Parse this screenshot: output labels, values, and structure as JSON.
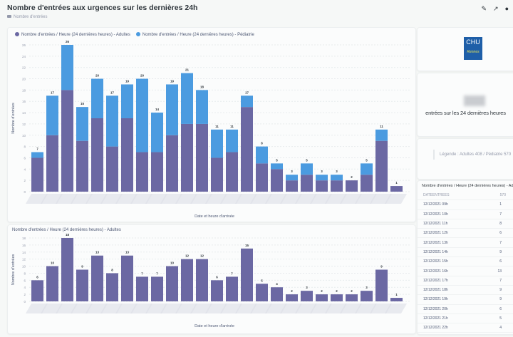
{
  "header": {
    "title": "Nombre d'entrées aux urgences sur les dernières 24h",
    "collection": "Nombre d'entrées",
    "icons": [
      "pencil-icon",
      "share-arrow-icon",
      "info-icon"
    ]
  },
  "colors": {
    "adultes": "#6b68a3",
    "pediatrie": "#4b9be0"
  },
  "chart_data": [
    {
      "type": "bar",
      "stacked": true,
      "title": "",
      "xlabel": "Date et heure d'arrivée",
      "ylabel": "Nombre d'entrées",
      "ylim": [
        0,
        26
      ],
      "yticks": [
        0,
        2,
        4,
        6,
        8,
        10,
        12,
        14,
        16,
        18,
        20,
        22,
        24,
        26
      ],
      "legend": "top-left",
      "grid": true,
      "totals": [
        7,
        17,
        26,
        15,
        20,
        17,
        19,
        20,
        14,
        19,
        21,
        18,
        11,
        11,
        17,
        8,
        5,
        3,
        5,
        3,
        3,
        2,
        5,
        11,
        1
      ],
      "series": [
        {
          "name": "Nombre d'entrées / Heure (24 dernières heures) - Adultes",
          "values": [
            6,
            10,
            18,
            9,
            13,
            8,
            13,
            7,
            7,
            10,
            12,
            12,
            6,
            7,
            15,
            5,
            4,
            2,
            3,
            2,
            2,
            2,
            3,
            9,
            1
          ]
        },
        {
          "name": "Nombre d'entrées / Heure (24 dernières heures) - Pédiatrie",
          "values": [
            1,
            7,
            8,
            6,
            7,
            9,
            6,
            13,
            7,
            9,
            9,
            6,
            5,
            4,
            2,
            3,
            1,
            1,
            2,
            1,
            1,
            0,
            2,
            2,
            0
          ]
        }
      ]
    },
    {
      "type": "bar",
      "title": "Nombre d'entrées / Heure (24 dernières heures) - Adultes",
      "xlabel": "Date et heure d'arrivée",
      "ylabel": "Nombre d'entrées",
      "ylim": [
        0,
        18
      ],
      "yticks": [
        0,
        2,
        4,
        6,
        8,
        10,
        12,
        14,
        16,
        18
      ],
      "grid": true,
      "series": [
        {
          "values": [
            6,
            10,
            18,
            9,
            13,
            8,
            13,
            7,
            7,
            10,
            12,
            12,
            6,
            7,
            15,
            5,
            4,
            2,
            3,
            2,
            2,
            2,
            3,
            9,
            1
          ]
        }
      ]
    }
  ],
  "side": {
    "logo": "CHU Rennes",
    "total_caption": "entrées sur les 24 dernières heures",
    "legend_text": "Légende : Adultes 408 / Pédiatrie 570",
    "table": {
      "title": "Nombre d'entrées / Heure (24 dernières heures) - Adultes",
      "col1": "DATEENTREES",
      "col2": "570",
      "rows": [
        [
          "12/12/2021 09h",
          "1"
        ],
        [
          "12/12/2021 10h",
          "7"
        ],
        [
          "12/12/2021 11h",
          "8"
        ],
        [
          "12/12/2021 12h",
          "6"
        ],
        [
          "12/12/2021 13h",
          "7"
        ],
        [
          "12/12/2021 14h",
          "9"
        ],
        [
          "12/12/2021 15h",
          "6"
        ],
        [
          "12/12/2021 16h",
          "13"
        ],
        [
          "12/12/2021 17h",
          "7"
        ],
        [
          "12/12/2021 18h",
          "9"
        ],
        [
          "12/12/2021 19h",
          "9"
        ],
        [
          "12/12/2021 20h",
          "6"
        ],
        [
          "12/12/2021 21h",
          "5"
        ],
        [
          "12/12/2021 22h",
          "4"
        ]
      ]
    }
  }
}
